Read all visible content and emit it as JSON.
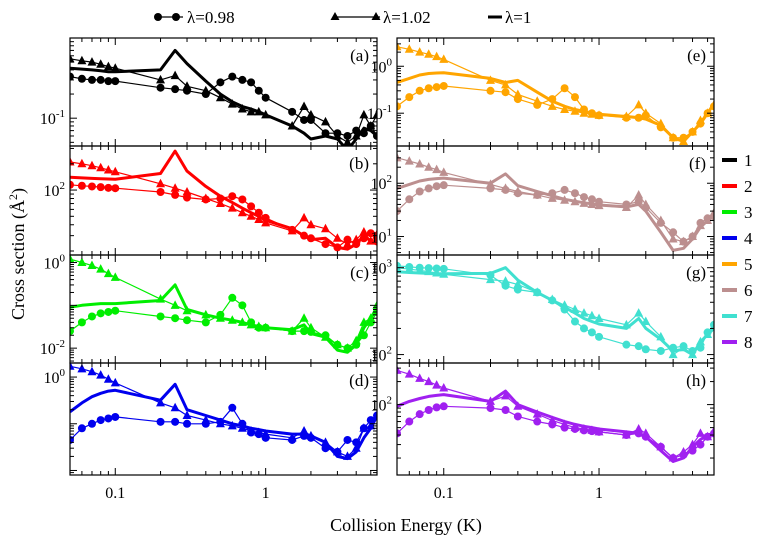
{
  "figure": {
    "xlabel": "Collision Energy (K)",
    "ylabel_main": "Cross section (",
    "ylabel_unit": "Å",
    "ylabel_sup": "2",
    "ylabel_close": ")"
  },
  "legend_top": [
    {
      "label": "λ=0.98",
      "marker": "circle"
    },
    {
      "label": "λ=1.02",
      "marker": "triangle"
    },
    {
      "label": "λ=1",
      "marker": "none"
    }
  ],
  "legend_right": [
    {
      "label": "1",
      "color": "#000000"
    },
    {
      "label": "2",
      "color": "#ff0000"
    },
    {
      "label": "3",
      "color": "#00ee00"
    },
    {
      "label": "4",
      "color": "#0000ee"
    },
    {
      "label": "5",
      "color": "#ffa500"
    },
    {
      "label": "6",
      "color": "#bc8f8f"
    },
    {
      "label": "7",
      "color": "#40e0d0"
    },
    {
      "label": "8",
      "color": "#a020f0"
    }
  ],
  "chart_data": {
    "type": "line",
    "xscale": "log",
    "yscale": "log",
    "xlim": [
      0.05,
      5.5
    ],
    "x_ticks": [
      0.1,
      1
    ],
    "x_tick_labels": [
      "0.1",
      "1"
    ],
    "x": [
      0.05,
      0.06,
      0.07,
      0.08,
      0.09,
      0.1,
      0.2,
      0.25,
      0.3,
      0.4,
      0.5,
      0.6,
      0.7,
      0.8,
      0.9,
      1.0,
      1.5,
      1.8,
      2.0,
      2.5,
      3.0,
      3.5,
      4.0,
      4.5,
      5.0,
      5.5
    ],
    "panels": [
      {
        "label": "(a)",
        "color": "#000000",
        "ylim": [
          0.045,
          1.0
        ],
        "y_ticks": [
          0.1
        ],
        "y_tick_labels": [
          "10<sup>-1</sup>"
        ],
        "series": [
          {
            "name": "λ=0.98",
            "values": [
              0.33,
              0.31,
              0.3,
              0.3,
              0.29,
              0.29,
              0.24,
              0.23,
              0.22,
              0.2,
              0.28,
              0.33,
              0.3,
              0.28,
              0.22,
              0.18,
              0.12,
              0.095,
              0.095,
              0.065,
              0.065,
              0.06,
              0.07,
              0.065,
              0.08,
              0.06
            ]
          },
          {
            "name": "λ=1.02",
            "values": [
              0.55,
              0.52,
              0.5,
              0.47,
              0.44,
              0.42,
              0.3,
              0.34,
              0.25,
              0.22,
              0.18,
              0.15,
              0.13,
              0.12,
              0.12,
              0.11,
              0.08,
              0.14,
              0.11,
              0.09,
              0.06,
              0.05,
              0.06,
              0.11,
              0.08,
              0.11
            ]
          },
          {
            "name": "λ=1",
            "values": [
              0.42,
              0.41,
              0.4,
              0.39,
              0.38,
              0.38,
              0.4,
              0.7,
              0.48,
              0.29,
              0.2,
              0.16,
              0.14,
              0.13,
              0.12,
              0.11,
              0.08,
              0.065,
              0.055,
              0.06,
              0.055,
              0.04,
              0.055,
              0.075,
              0.07,
              0.06
            ]
          }
        ]
      },
      {
        "label": "(b)",
        "color": "#ff0000",
        "ylim": [
          18,
          320
        ],
        "y_ticks": [
          100
        ],
        "y_tick_labels": [
          "10<sup>2</sup>"
        ],
        "series": [
          {
            "name": "λ=0.98",
            "values": [
              115,
              112,
              110,
              108,
              106,
              105,
              95,
              88,
              82,
              78,
              80,
              85,
              78,
              65,
              55,
              48,
              35,
              30,
              28,
              24,
              22,
              27,
              24,
              28,
              32,
              26
            ]
          },
          {
            "name": "λ=1.02",
            "values": [
              210,
              200,
              190,
              180,
              170,
              162,
              118,
              105,
              95,
              80,
              70,
              62,
              55,
              50,
              46,
              42,
              34,
              48,
              40,
              36,
              28,
              24,
              27,
              33,
              26,
              31
            ]
          },
          {
            "name": "λ=1",
            "values": [
              140,
              138,
              136,
              135,
              134,
              133,
              155,
              280,
              165,
              110,
              85,
              72,
              62,
              55,
              50,
              45,
              36,
              30,
              27,
              28,
              22,
              21,
              24,
              30,
              26,
              24
            ]
          }
        ]
      },
      {
        "label": "(c)",
        "color": "#00ee00",
        "ylim": [
          0.0045,
          1.5
        ],
        "y_ticks": [
          0.01,
          1
        ],
        "y_tick_labels": [
          "10<sup>-2</sup>",
          "10<sup>0</sup>"
        ],
        "series": [
          {
            "name": "λ=0.98",
            "values": [
              0.025,
              0.04,
              0.055,
              0.065,
              0.07,
              0.075,
              0.055,
              0.05,
              0.045,
              0.04,
              0.06,
              0.15,
              0.1,
              0.04,
              0.03,
              0.03,
              0.025,
              0.025,
              0.024,
              0.02,
              0.012,
              0.01,
              0.012,
              0.02,
              0.04,
              0.07
            ]
          },
          {
            "name": "λ=1.02",
            "values": [
              1.2,
              1.0,
              0.85,
              0.7,
              0.55,
              0.45,
              0.14,
              0.1,
              0.075,
              0.06,
              0.05,
              0.045,
              0.04,
              0.035,
              0.032,
              0.03,
              0.025,
              0.05,
              0.03,
              0.018,
              0.012,
              0.01,
              0.015,
              0.04,
              0.05,
              0.1
            ]
          },
          {
            "name": "λ=1",
            "values": [
              0.09,
              0.1,
              0.105,
              0.11,
              0.11,
              0.11,
              0.13,
              0.3,
              0.08,
              0.06,
              0.05,
              0.045,
              0.04,
              0.035,
              0.032,
              0.03,
              0.027,
              0.035,
              0.022,
              0.018,
              0.009,
              0.008,
              0.012,
              0.03,
              0.05,
              0.09
            ]
          }
        ]
      },
      {
        "label": "(d)",
        "color": "#0000ee",
        "ylim": [
          0.008,
          2.0
        ],
        "y_ticks": [
          1
        ],
        "y_tick_labels": [
          "10<sup>0</sup>"
        ],
        "series": [
          {
            "name": "λ=0.98",
            "values": [
              0.045,
              0.08,
              0.1,
              0.12,
              0.13,
              0.14,
              0.11,
              0.11,
              0.1,
              0.1,
              0.11,
              0.22,
              0.1,
              0.065,
              0.06,
              0.05,
              0.045,
              0.055,
              0.05,
              0.03,
              0.025,
              0.045,
              0.04,
              0.08,
              0.12,
              0.15
            ]
          },
          {
            "name": "λ=1.02",
            "values": [
              1.7,
              1.5,
              1.3,
              1.1,
              0.9,
              0.75,
              0.28,
              0.22,
              0.15,
              0.12,
              0.1,
              0.09,
              0.08,
              0.07,
              0.065,
              0.06,
              0.05,
              0.07,
              0.055,
              0.04,
              0.025,
              0.02,
              0.03,
              0.08,
              0.09,
              0.14
            ]
          },
          {
            "name": "λ=1",
            "values": [
              0.18,
              0.28,
              0.38,
              0.45,
              0.5,
              0.52,
              0.32,
              0.7,
              0.2,
              0.15,
              0.12,
              0.1,
              0.09,
              0.08,
              0.075,
              0.07,
              0.06,
              0.06,
              0.055,
              0.04,
              0.02,
              0.018,
              0.025,
              0.05,
              0.08,
              0.15
            ]
          }
        ]
      },
      {
        "label": "(e)",
        "color": "#ffa500",
        "ylim": [
          0.02,
          4.0
        ],
        "y_ticks": [
          0.1,
          1
        ],
        "y_tick_labels": [
          "10<sup>-1</sup>",
          "10<sup>0</sup>"
        ],
        "series": [
          {
            "name": "λ=0.98",
            "values": [
              0.14,
              0.22,
              0.3,
              0.34,
              0.36,
              0.38,
              0.3,
              0.28,
              0.2,
              0.15,
              0.2,
              0.34,
              0.22,
              0.12,
              0.1,
              0.09,
              0.08,
              0.08,
              0.09,
              0.05,
              0.03,
              0.03,
              0.04,
              0.06,
              0.1,
              0.14
            ]
          },
          {
            "name": "λ=1.02",
            "values": [
              2.6,
              2.3,
              2.0,
              1.8,
              1.6,
              1.4,
              0.5,
              0.4,
              0.25,
              0.18,
              0.14,
              0.12,
              0.11,
              0.1,
              0.095,
              0.09,
              0.085,
              0.15,
              0.1,
              0.06,
              0.03,
              0.025,
              0.04,
              0.07,
              0.1,
              0.15
            ]
          },
          {
            "name": "λ=1",
            "values": [
              0.45,
              0.55,
              0.65,
              0.7,
              0.72,
              0.73,
              0.55,
              0.45,
              0.5,
              0.28,
              0.18,
              0.14,
              0.12,
              0.11,
              0.1,
              0.095,
              0.085,
              0.08,
              0.075,
              0.055,
              0.03,
              0.025,
              0.04,
              0.06,
              0.1,
              0.16
            ]
          }
        ]
      },
      {
        "label": "(f)",
        "color": "#bc8f8f",
        "ylim": [
          4.5,
          500
        ],
        "y_ticks": [
          10,
          100
        ],
        "y_tick_labels": [
          "10<sup>1</sup>",
          "10<sup>2</sup>"
        ],
        "series": [
          {
            "name": "λ=0.98",
            "values": [
              30,
              50,
              70,
              80,
              88,
              92,
              80,
              75,
              65,
              60,
              65,
              75,
              65,
              55,
              50,
              45,
              40,
              45,
              35,
              18,
              12,
              8,
              10,
              18,
              22,
              24
            ]
          },
          {
            "name": "λ=1.02",
            "values": [
              300,
              260,
              230,
              200,
              180,
              160,
              95,
              80,
              70,
              60,
              52,
              48,
              45,
              42,
              40,
              38,
              35,
              60,
              40,
              20,
              9,
              8,
              10,
              16,
              20,
              28
            ]
          },
          {
            "name": "λ=1",
            "values": [
              80,
              95,
              110,
              118,
              122,
              125,
              100,
              150,
              90,
              70,
              58,
              50,
              46,
              43,
              41,
              39,
              36,
              40,
              30,
              12,
              5.5,
              6,
              9,
              15,
              20,
              25
            ]
          }
        ]
      },
      {
        "label": "(g)",
        "color": "#40e0d0",
        "ylim": [
          80,
          1400
        ],
        "y_ticks": [
          100,
          1000
        ],
        "y_tick_labels": [
          "10<sup>2</sup>",
          "10<sup>3</sup>"
        ],
        "series": [
          {
            "name": "λ=0.98",
            "values": [
              1050,
              1020,
              1000,
              990,
              980,
              970,
              820,
              620,
              560,
              520,
              420,
              330,
              240,
              200,
              180,
              160,
              130,
              125,
              115,
              110,
              120,
              125,
              110,
              120,
              180,
              220
            ]
          },
          {
            "name": "λ=1.02",
            "values": [
              1000,
              960,
              930,
              900,
              870,
              840,
              730,
              700,
              640,
              520,
              430,
              370,
              330,
              300,
              280,
              260,
              220,
              300,
              240,
              160,
              100,
              120,
              100,
              140,
              170,
              210
            ]
          },
          {
            "name": "λ=1",
            "values": [
              900,
              880,
              870,
              860,
              850,
              850,
              860,
              1000,
              720,
              520,
              420,
              350,
              300,
              260,
              240,
              225,
              200,
              260,
              200,
              150,
              110,
              115,
              100,
              140,
              170,
              200
            ]
          }
        ]
      },
      {
        "label": "(h)",
        "color": "#a020f0",
        "ylim": [
          12,
          350
        ],
        "y_ticks": [
          100
        ],
        "y_tick_labels": [
          "10<sup>2</sup>"
        ],
        "series": [
          {
            "name": "λ=0.98",
            "values": [
              42,
              60,
              75,
              85,
              92,
              95,
              90,
              85,
              70,
              60,
              55,
              50,
              48,
              46,
              45,
              44,
              40,
              42,
              38,
              28,
              20,
              22,
              25,
              30,
              38,
              42
            ]
          },
          {
            "name": "λ=1.02",
            "values": [
              280,
              250,
              220,
              200,
              180,
              165,
              110,
              130,
              95,
              75,
              62,
              55,
              50,
              48,
              46,
              44,
              40,
              48,
              42,
              28,
              20,
              24,
              30,
              42,
              38,
              45
            ]
          },
          {
            "name": "λ=1",
            "values": [
              95,
              110,
              120,
              128,
              132,
              135,
              110,
              150,
              100,
              80,
              68,
              60,
              55,
              52,
              50,
              48,
              44,
              42,
              38,
              25,
              18,
              20,
              28,
              35,
              40,
              42
            ]
          }
        ]
      }
    ]
  }
}
